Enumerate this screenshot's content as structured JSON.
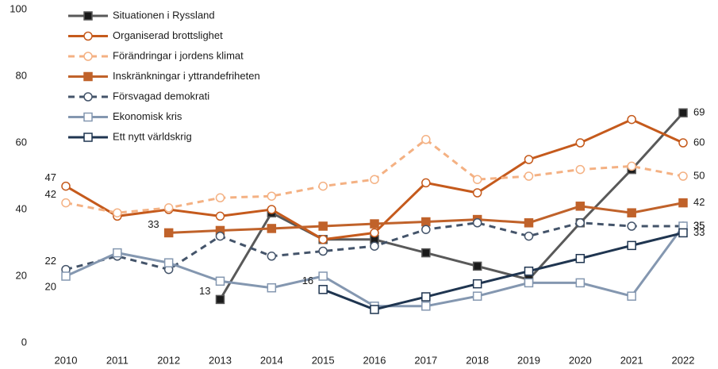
{
  "chart_data": {
    "type": "line",
    "x": [
      2010,
      2011,
      2012,
      2013,
      2014,
      2015,
      2016,
      2017,
      2018,
      2019,
      2020,
      2021,
      2022
    ],
    "ylim": [
      0,
      100
    ],
    "yticks": [
      0,
      20,
      40,
      60,
      80,
      100
    ],
    "grid": false,
    "legend": "top-left",
    "series": [
      {
        "name": "Situationen i Ryssland",
        "color": "#595959",
        "marker": "square",
        "marker_fill": "#1a1a1a",
        "dash": false,
        "values": [
          null,
          null,
          null,
          13,
          39,
          31,
          31,
          27,
          23,
          19,
          36,
          52,
          69
        ],
        "value_labels": [
          null,
          null,
          null,
          "13",
          null,
          null,
          null,
          null,
          null,
          null,
          null,
          null,
          "69"
        ]
      },
      {
        "name": "Organiserad brottslighet",
        "color": "#c55a1c",
        "marker": "circle",
        "marker_fill": "#ffffff",
        "dash": false,
        "values": [
          47,
          38,
          40,
          38,
          40,
          31,
          33,
          48,
          45,
          55,
          60,
          67,
          60
        ],
        "value_labels": [
          "47",
          null,
          null,
          null,
          null,
          null,
          null,
          null,
          null,
          null,
          null,
          null,
          "60"
        ]
      },
      {
        "name": "Förändringar i jordens klimat",
        "color": "#f4b183",
        "marker": "circle",
        "marker_fill": "#ffffff",
        "dash": true,
        "values": [
          42,
          39,
          40.5,
          43.5,
          44,
          47,
          49,
          61,
          49,
          50,
          52,
          53,
          50
        ],
        "value_labels": [
          "42",
          null,
          null,
          null,
          null,
          null,
          null,
          null,
          null,
          null,
          null,
          null,
          "50"
        ]
      },
      {
        "name": "Inskränkningar i yttrandefriheten",
        "color": "#c0622a",
        "marker": "square",
        "marker_fill": "#c0622a",
        "dash": false,
        "values": [
          null,
          null,
          33,
          33.7,
          34.3,
          35,
          35.7,
          36.3,
          37,
          36,
          41,
          39,
          42
        ],
        "value_labels": [
          null,
          null,
          "33",
          null,
          null,
          null,
          null,
          null,
          null,
          null,
          null,
          null,
          "42"
        ]
      },
      {
        "name": "Försvagad demokrati",
        "color": "#44546a",
        "marker": "circle",
        "marker_fill": "#ffffff",
        "dash": true,
        "values": [
          22,
          26,
          22,
          32,
          26,
          27.5,
          29,
          34,
          36,
          32,
          36,
          35,
          35
        ],
        "value_labels": [
          "22",
          null,
          null,
          null,
          null,
          null,
          null,
          null,
          null,
          null,
          null,
          null,
          "35"
        ]
      },
      {
        "name": "Ekonomisk kris",
        "color": "#8497b0",
        "marker": "square",
        "marker_fill": "#ffffff",
        "dash": false,
        "values": [
          20,
          27,
          24,
          18.5,
          16.5,
          20,
          11,
          11,
          14,
          18,
          18,
          14,
          35
        ],
        "value_labels": [
          "20",
          null,
          null,
          null,
          null,
          null,
          null,
          null,
          null,
          null,
          null,
          null,
          "35"
        ]
      },
      {
        "name": "Ett nytt världskrig",
        "color": "#1f3550",
        "marker": "square",
        "marker_fill": "#ffffff",
        "dash": false,
        "values": [
          null,
          null,
          null,
          null,
          null,
          16,
          10,
          13.8,
          17.7,
          21.5,
          25.3,
          29.2,
          33
        ],
        "value_labels": [
          null,
          null,
          null,
          null,
          null,
          "16",
          null,
          null,
          null,
          null,
          null,
          null,
          "33"
        ]
      }
    ]
  }
}
